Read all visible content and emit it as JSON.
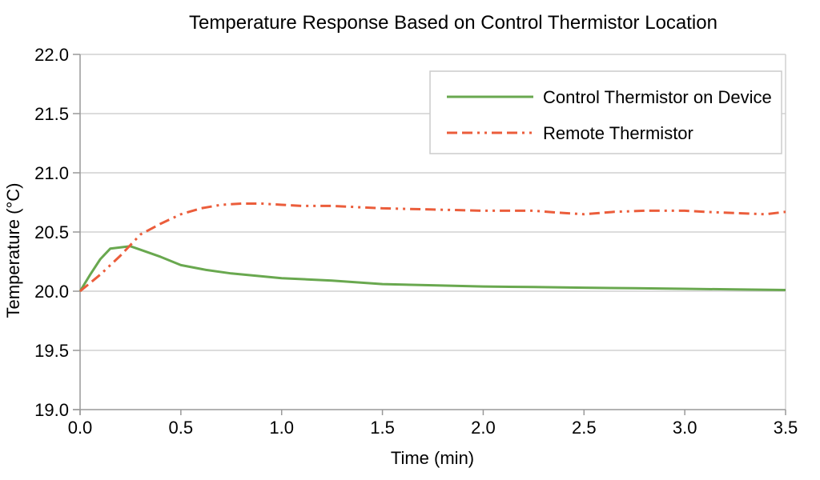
{
  "chart_data": {
    "type": "line",
    "title": "Temperature Response Based on Control Thermistor Location",
    "xlabel": "Time (min)",
    "ylabel": "Temperature (°C)",
    "xlim": [
      0.0,
      3.5
    ],
    "ylim": [
      19.0,
      22.0
    ],
    "xticks": [
      0.0,
      0.5,
      1.0,
      1.5,
      2.0,
      2.5,
      3.0,
      3.5
    ],
    "yticks": [
      19.0,
      19.5,
      20.0,
      20.5,
      21.0,
      21.5,
      22.0
    ],
    "x_tick_labels": [
      "0.0",
      "0.5",
      "1.0",
      "1.5",
      "2.0",
      "2.5",
      "3.0",
      "3.5"
    ],
    "y_tick_labels": [
      "19.0",
      "19.5",
      "20.0",
      "20.5",
      "21.0",
      "21.5",
      "22.0"
    ],
    "grid": "horizontal",
    "legend_position": "top-right",
    "colors": {
      "gridline": "#d0d0d0",
      "axis": "#999999",
      "legend_border": "#cccccc",
      "text": "#000000"
    },
    "series": [
      {
        "name": "Control Thermistor on Device",
        "color": "#69a84f",
        "style": "solid",
        "x": [
          0,
          0.05,
          0.1,
          0.15,
          0.2,
          0.25,
          0.3,
          0.4,
          0.5,
          0.625,
          0.75,
          0.875,
          1.0,
          1.125,
          1.25,
          1.5,
          1.75,
          2.0,
          2.25,
          2.5,
          2.75,
          3.0,
          3.25,
          3.5
        ],
        "y": [
          20.0,
          20.14,
          20.27,
          20.36,
          20.37,
          20.38,
          20.35,
          20.29,
          20.22,
          20.18,
          20.15,
          20.13,
          20.11,
          20.1,
          20.09,
          20.06,
          20.05,
          20.04,
          20.035,
          20.03,
          20.025,
          20.02,
          20.015,
          20.01
        ]
      },
      {
        "name": "Remote Thermistor",
        "color": "#eb5d3b",
        "style": "dash-dash-dot-dot",
        "x": [
          0,
          0.1,
          0.2,
          0.3,
          0.4,
          0.5,
          0.6,
          0.7,
          0.8,
          0.9,
          1.0,
          1.1,
          1.25,
          1.5,
          1.75,
          2.0,
          2.25,
          2.4,
          2.5,
          2.65,
          2.8,
          3.0,
          3.1,
          3.25,
          3.4,
          3.5
        ],
        "y": [
          20.0,
          20.14,
          20.3,
          20.48,
          20.57,
          20.65,
          20.7,
          20.73,
          20.74,
          20.74,
          20.73,
          20.72,
          20.72,
          20.7,
          20.69,
          20.68,
          20.68,
          20.66,
          20.65,
          20.67,
          20.68,
          20.68,
          20.67,
          20.66,
          20.65,
          20.67
        ]
      }
    ]
  }
}
